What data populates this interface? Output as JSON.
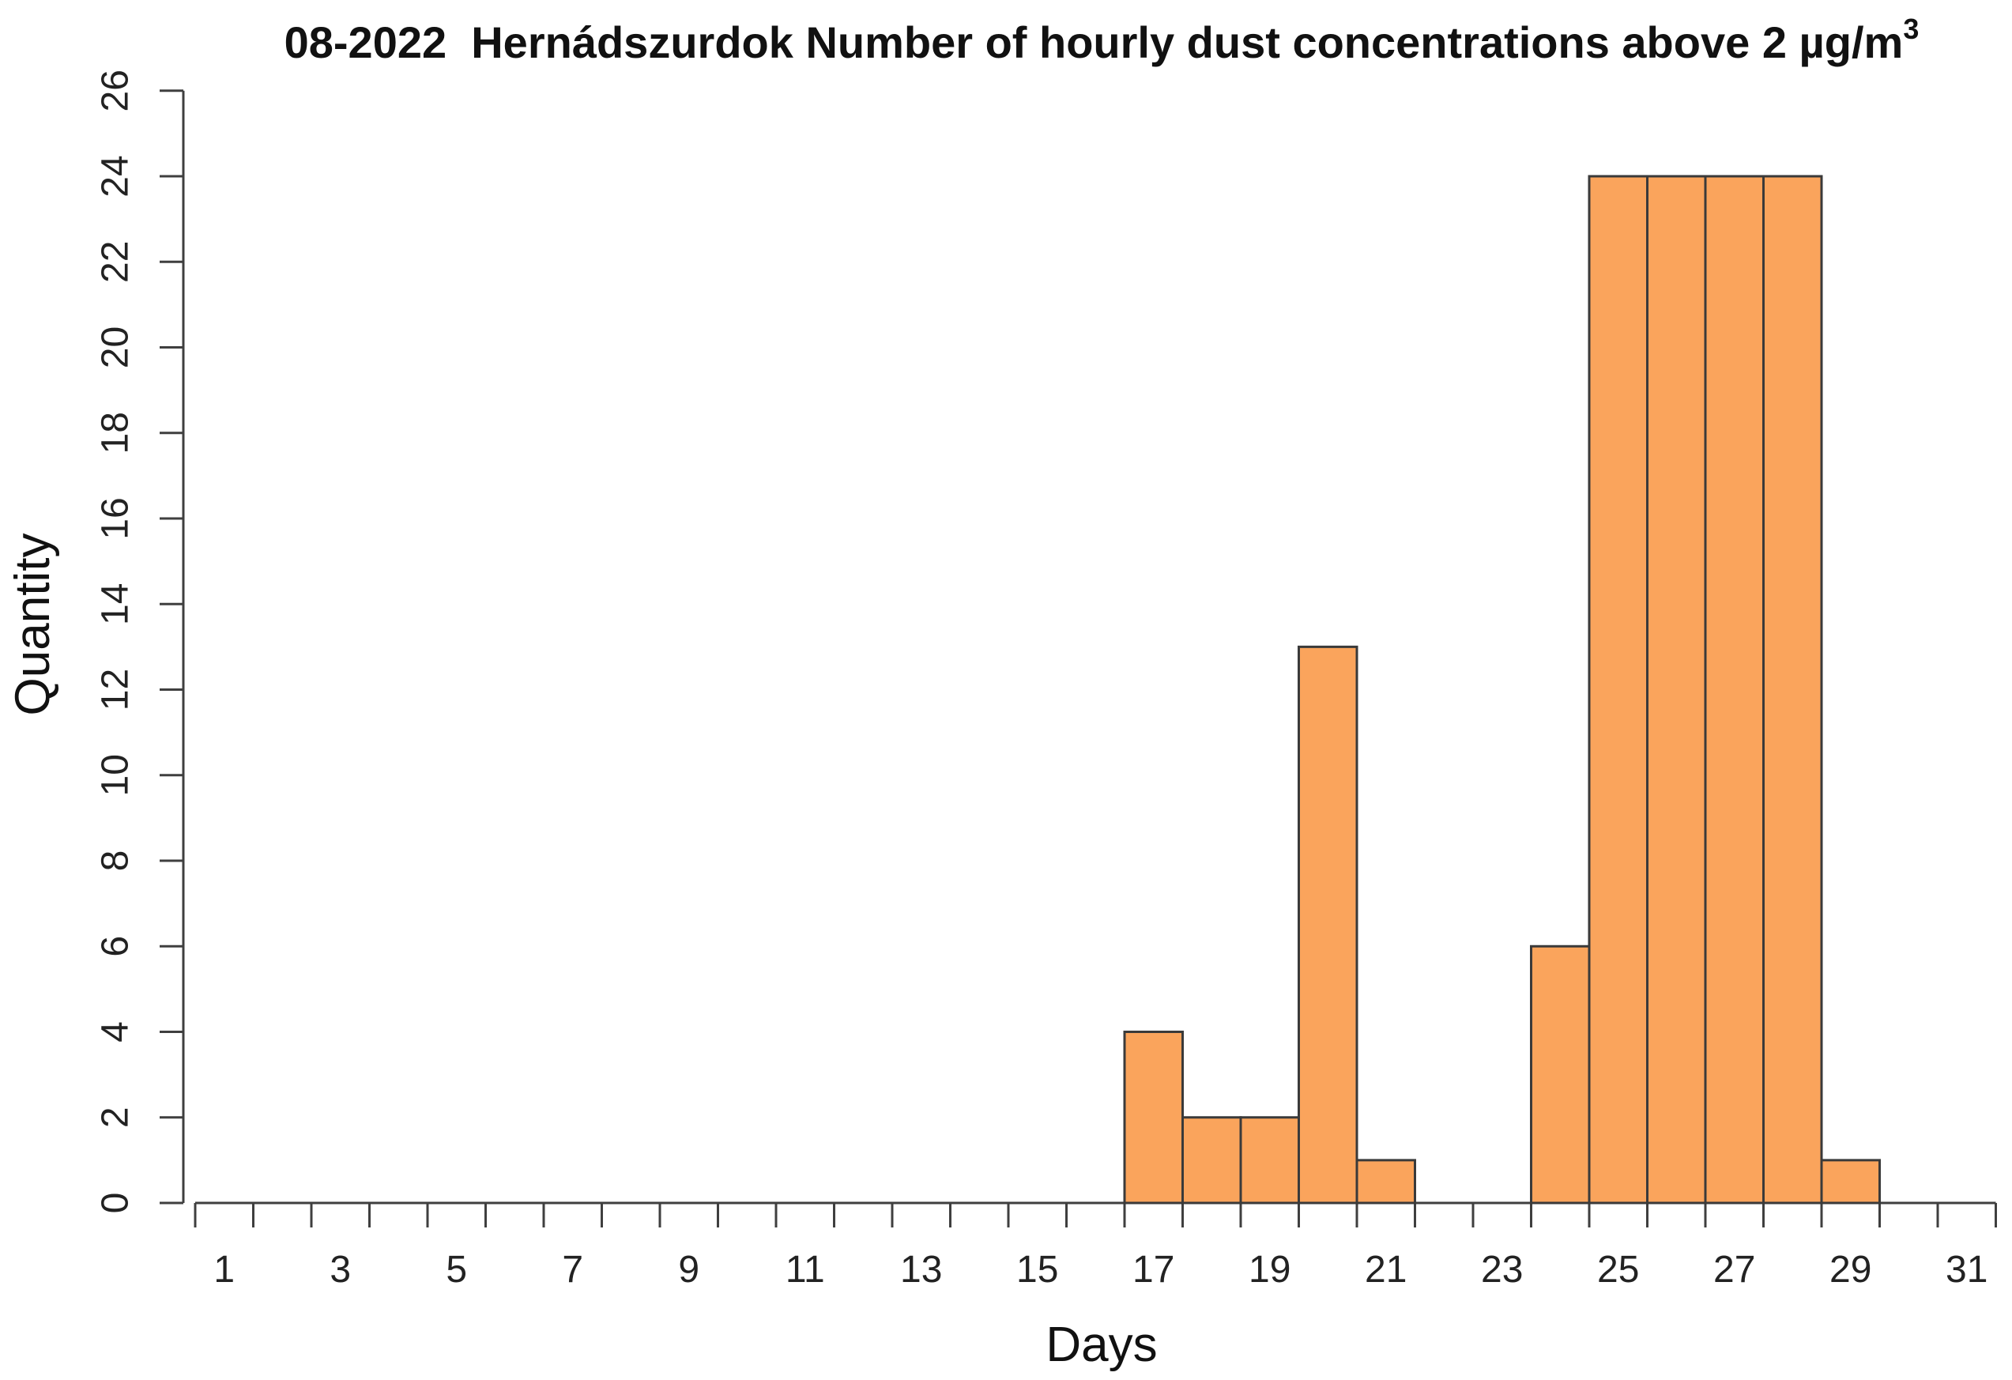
{
  "chart_data": {
    "type": "bar",
    "title": "08-2022  Hernádszurdok Number of hourly dust concentrations above 2 µg/m",
    "title_superscript": "3",
    "xlabel": "Days",
    "ylabel": "Quantity",
    "categories": [
      1,
      2,
      3,
      4,
      5,
      6,
      7,
      8,
      9,
      10,
      11,
      12,
      13,
      14,
      15,
      16,
      17,
      18,
      19,
      20,
      21,
      22,
      23,
      24,
      25,
      26,
      27,
      28,
      29,
      30,
      31
    ],
    "values": [
      0,
      0,
      0,
      0,
      0,
      0,
      0,
      0,
      0,
      0,
      0,
      0,
      0,
      0,
      0,
      0,
      4,
      2,
      2,
      13,
      1,
      0,
      0,
      6,
      24,
      24,
      24,
      24,
      1,
      0,
      0
    ],
    "ylim": [
      0,
      26
    ],
    "ytick_step": 2,
    "yticks": [
      0,
      2,
      4,
      6,
      8,
      10,
      12,
      14,
      16,
      18,
      20,
      22,
      24,
      26
    ],
    "xtick_labeled_days": [
      1,
      3,
      5,
      7,
      9,
      11,
      13,
      15,
      17,
      19,
      21,
      23,
      25,
      27,
      29,
      31
    ],
    "x_ticks_at_bin_edges": true,
    "grid": false,
    "legend": null,
    "colors": {
      "bar_fill": "#FAA45C",
      "bar_border": "#3a3a3a",
      "axis": "#3f3f3f",
      "text": "#111111"
    }
  }
}
